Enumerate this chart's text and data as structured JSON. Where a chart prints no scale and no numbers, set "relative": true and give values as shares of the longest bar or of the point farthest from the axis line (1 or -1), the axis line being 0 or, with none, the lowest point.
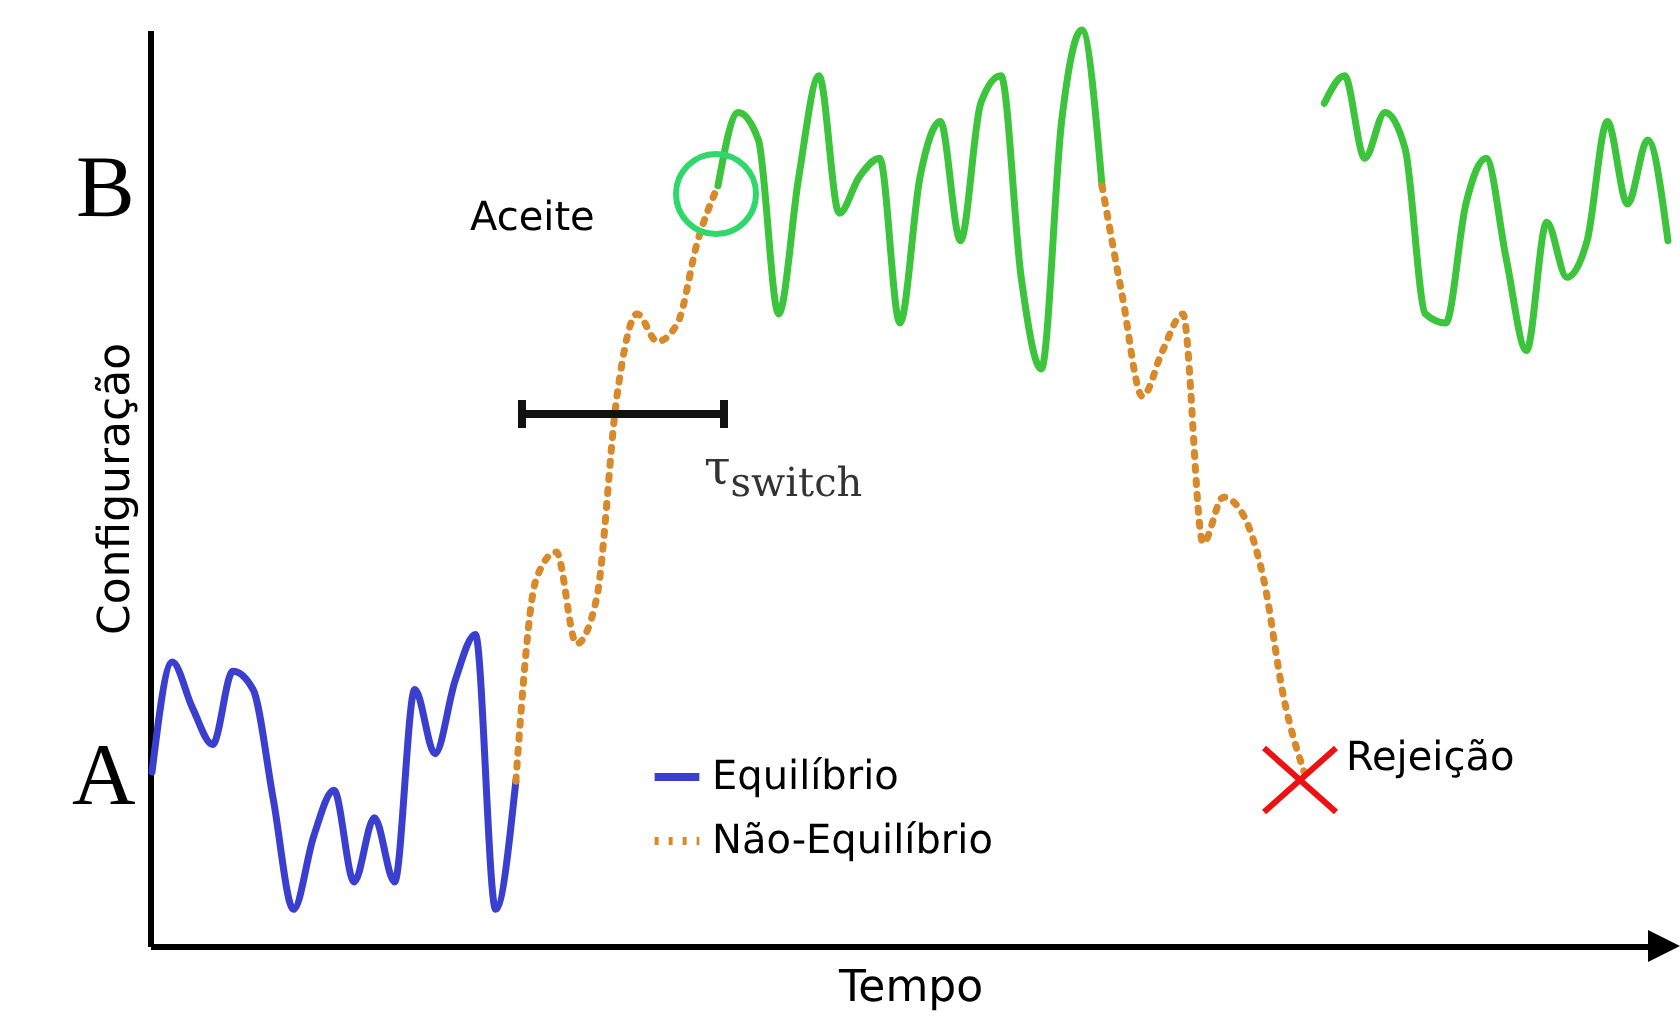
{
  "chart_data": {
    "type": "line",
    "xlabel": "Tempo",
    "ylabel": "Configuração",
    "relative": true,
    "categories": [
      null,
      null,
      null,
      null,
      null,
      null,
      null,
      null,
      null,
      null,
      null,
      null,
      null,
      null,
      null,
      null,
      null,
      null,
      null,
      null,
      null,
      null,
      null,
      null,
      null,
      null,
      null,
      null,
      null,
      null,
      null,
      null,
      null,
      null,
      null,
      null,
      null,
      null,
      null,
      null,
      null,
      null,
      null,
      null,
      null,
      null,
      null,
      null,
      null,
      null,
      null,
      null,
      null,
      null,
      null,
      null,
      null,
      null,
      null,
      null,
      null,
      null,
      null,
      null,
      null,
      null,
      null,
      null,
      null,
      null,
      null,
      null,
      null,
      null,
      null,
      null
    ],
    "series": [
      {
        "name": "Equilíbrio",
        "color": "#3b3fd0",
        "values": [
          0.19,
          0.31,
          0.26,
          0.22,
          0.3,
          0.28,
          0.16,
          0.04,
          0.12,
          0.17,
          0.07,
          0.14,
          0.07,
          0.28,
          0.21,
          0.29,
          0.34,
          0.04,
          0.18,
          null,
          null,
          null,
          null,
          null,
          null,
          null,
          null,
          null,
          null,
          null,
          null,
          null,
          null,
          null,
          null,
          null,
          null,
          null,
          null,
          null,
          null,
          null,
          null,
          null,
          null,
          null,
          null,
          null,
          null,
          null,
          null,
          null,
          null,
          null,
          null,
          null,
          null,
          null,
          null,
          null,
          null,
          null,
          null,
          null,
          null,
          null,
          null,
          null,
          null,
          null,
          null,
          null,
          null,
          null,
          null,
          null
        ]
      },
      {
        "color": "#3cc43c",
        "values": [
          null,
          null,
          null,
          null,
          null,
          null,
          null,
          null,
          null,
          null,
          null,
          null,
          null,
          null,
          null,
          null,
          null,
          null,
          null,
          null,
          null,
          null,
          null,
          null,
          null,
          null,
          null,
          null,
          0.83,
          0.91,
          0.88,
          0.69,
          0.84,
          0.95,
          0.8,
          0.84,
          0.86,
          0.68,
          0.84,
          0.9,
          0.77,
          0.92,
          0.95,
          0.73,
          0.63,
          0.9,
          1,
          0.83,
          null,
          null,
          null,
          null,
          null,
          null,
          null,
          null,
          null,
          null,
          0.92,
          0.95,
          0.86,
          0.91,
          0.87,
          0.69,
          0.68,
          0.81,
          0.86,
          0.75,
          0.65,
          0.79,
          0.73,
          0.77,
          0.9,
          0.81,
          0.88,
          0.77
        ]
      },
      {
        "name": "Não-Equilíbrio",
        "color": "#d88a2a",
        "line_style": "dotted",
        "values": [
          null,
          null,
          null,
          null,
          null,
          null,
          null,
          null,
          null,
          null,
          null,
          null,
          null,
          null,
          null,
          null,
          null,
          null,
          0.18,
          0.4,
          0.43,
          0.33,
          0.38,
          0.6,
          0.69,
          0.66,
          0.68,
          0.77,
          0.83,
          null,
          null,
          null,
          null,
          null,
          null,
          null,
          null,
          null,
          null,
          null,
          null,
          null,
          null,
          null,
          null,
          null,
          null,
          0.83,
          0.71,
          0.6,
          0.65,
          0.69,
          0.44,
          0.49,
          0.47,
          0.4,
          0.27,
          0.19,
          null,
          null,
          null,
          null,
          null,
          null,
          null,
          null,
          null,
          null,
          null,
          null,
          null,
          null,
          null,
          null,
          null,
          null
        ]
      }
    ],
    "marker": "none",
    "legend": "bottom",
    "line_style": "solid",
    "annotations": [
      "A",
      "B",
      "Aceite",
      "τ$_{switch}$",
      "Rejeição"
    ]
  }
}
